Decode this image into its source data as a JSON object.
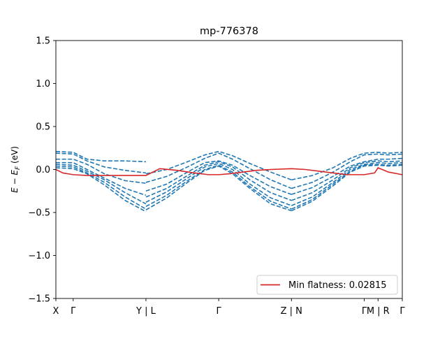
{
  "chart_data": {
    "type": "line",
    "title": "mp-776378",
    "ylabel": "E − E",
    "ylabel_sub": "F",
    "ylabel_unit": " (eV)",
    "ylim": [
      -1.5,
      1.5
    ],
    "y_ticks": [
      -1.5,
      -1.0,
      -0.5,
      0.0,
      0.5,
      1.0,
      1.5
    ],
    "y_tick_labels": [
      "−1.5",
      "−1.0",
      "−0.5",
      "0.0",
      "0.5",
      "1.0",
      "1.5"
    ],
    "xlim": [
      0,
      10.0
    ],
    "x_ticks": [
      {
        "x": 0.0,
        "label": "X"
      },
      {
        "x": 0.5,
        "label": "Γ"
      },
      {
        "x": 2.6,
        "label": "Y | L"
      },
      {
        "x": 4.7,
        "label": "Γ"
      },
      {
        "x": 6.8,
        "label": "Z | N"
      },
      {
        "x": 8.9,
        "label": "Γ"
      },
      {
        "x": 9.3,
        "label": "M | R"
      },
      {
        "x": 10.0,
        "label": "Γ"
      }
    ],
    "legend": {
      "placement": "lower-right",
      "entries": [
        "Min flatness: 0.02815"
      ]
    },
    "grid": false,
    "colors": {
      "bands": "#1f77b4",
      "flat_band": "#d62728"
    },
    "series": [
      {
        "style": "solid",
        "color": "#d62728",
        "x": [
          0.0,
          0.2,
          0.5,
          0.9,
          1.3,
          1.8,
          2.6,
          3.0,
          3.5,
          4.0,
          4.4,
          4.7,
          5.0,
          5.4,
          5.8,
          6.2,
          6.8,
          7.2,
          7.6,
          8.0,
          8.4,
          8.9,
          9.2,
          9.3,
          9.6,
          10.0
        ],
        "y": [
          0.0,
          -0.04,
          -0.06,
          -0.07,
          -0.07,
          -0.07,
          -0.07,
          0.01,
          -0.01,
          -0.04,
          -0.06,
          -0.06,
          -0.05,
          -0.03,
          -0.01,
          0.0,
          0.01,
          0.0,
          -0.02,
          -0.04,
          -0.06,
          -0.06,
          -0.04,
          0.02,
          -0.03,
          -0.06
        ]
      },
      {
        "style": "dashed",
        "color": "#1f77b4",
        "x": [
          0.0,
          0.5,
          0.9,
          1.4,
          2.0,
          2.6
        ],
        "y": [
          0.21,
          0.2,
          0.12,
          0.1,
          0.1,
          0.09
        ]
      },
      {
        "style": "dashed",
        "color": "#1f77b4",
        "x": [
          0.0,
          0.5,
          0.9,
          1.4,
          2.0,
          2.6
        ],
        "y": [
          0.19,
          0.18,
          0.1,
          0.03,
          -0.01,
          -0.04
        ]
      },
      {
        "style": "dashed",
        "color": "#1f77b4",
        "x": [
          0.0,
          0.5,
          0.9,
          1.4,
          2.0,
          2.6
        ],
        "y": [
          0.12,
          0.12,
          0.06,
          -0.05,
          -0.13,
          -0.16
        ]
      },
      {
        "style": "dashed",
        "color": "#1f77b4",
        "x": [
          0.0,
          0.5,
          0.9,
          1.4,
          2.0,
          2.6
        ],
        "y": [
          0.08,
          0.08,
          0.0,
          -0.1,
          -0.22,
          -0.3
        ]
      },
      {
        "style": "dashed",
        "color": "#1f77b4",
        "x": [
          0.0,
          0.5,
          0.9,
          1.4,
          2.0,
          2.6
        ],
        "y": [
          0.06,
          0.05,
          -0.02,
          -0.12,
          -0.27,
          -0.4
        ]
      },
      {
        "style": "dashed",
        "color": "#1f77b4",
        "x": [
          0.0,
          0.5,
          0.9,
          1.4,
          2.0,
          2.6
        ],
        "y": [
          0.04,
          0.03,
          -0.04,
          -0.15,
          -0.32,
          -0.46
        ]
      },
      {
        "style": "dashed",
        "color": "#1f77b4",
        "x": [
          0.0,
          0.5,
          0.9,
          1.4,
          2.0,
          2.6
        ],
        "y": [
          0.02,
          0.01,
          -0.05,
          -0.18,
          -0.36,
          -0.49
        ]
      },
      {
        "style": "dashed",
        "color": "#1f77b4",
        "x": [
          2.6,
          3.2,
          3.8,
          4.3,
          4.7,
          5.1,
          5.6,
          6.2,
          6.8
        ],
        "y": [
          -0.05,
          0.0,
          0.09,
          0.17,
          0.21,
          0.16,
          0.07,
          -0.03,
          -0.12
        ]
      },
      {
        "style": "dashed",
        "color": "#1f77b4",
        "x": [
          2.6,
          3.2,
          3.8,
          4.3,
          4.7,
          5.1,
          5.6,
          6.2,
          6.8
        ],
        "y": [
          -0.15,
          -0.08,
          0.03,
          0.13,
          0.19,
          0.12,
          0.01,
          -0.12,
          -0.22
        ]
      },
      {
        "style": "dashed",
        "color": "#1f77b4",
        "x": [
          2.6,
          3.2,
          3.8,
          4.3,
          4.7,
          5.1,
          5.6,
          6.2,
          6.8
        ],
        "y": [
          -0.25,
          -0.17,
          -0.03,
          0.08,
          0.1,
          0.05,
          -0.07,
          -0.2,
          -0.29
        ]
      },
      {
        "style": "dashed",
        "color": "#1f77b4",
        "x": [
          2.6,
          3.2,
          3.8,
          4.3,
          4.7,
          5.1,
          5.6,
          6.2,
          6.8
        ],
        "y": [
          -0.32,
          -0.22,
          -0.07,
          0.05,
          0.09,
          0.03,
          -0.12,
          -0.27,
          -0.36
        ]
      },
      {
        "style": "dashed",
        "color": "#1f77b4",
        "x": [
          2.6,
          3.2,
          3.8,
          4.3,
          4.7,
          5.1,
          5.6,
          6.2,
          6.8
        ],
        "y": [
          -0.38,
          -0.26,
          -0.1,
          0.03,
          0.07,
          0.0,
          -0.17,
          -0.33,
          -0.42
        ]
      },
      {
        "style": "dashed",
        "color": "#1f77b4",
        "x": [
          2.6,
          3.2,
          3.8,
          4.3,
          4.7,
          5.1,
          5.6,
          6.2,
          6.8
        ],
        "y": [
          -0.43,
          -0.3,
          -0.13,
          0.0,
          0.05,
          -0.03,
          -0.2,
          -0.37,
          -0.46
        ]
      },
      {
        "style": "dashed",
        "color": "#1f77b4",
        "x": [
          2.6,
          3.2,
          3.8,
          4.3,
          4.7,
          5.1,
          5.6,
          6.2,
          6.8
        ],
        "y": [
          -0.47,
          -0.33,
          -0.15,
          -0.01,
          0.04,
          -0.05,
          -0.22,
          -0.4,
          -0.48
        ]
      },
      {
        "style": "dashed",
        "color": "#1f77b4",
        "x": [
          6.8,
          7.4,
          8.0,
          8.5,
          8.9,
          9.3,
          9.6,
          10.0
        ],
        "y": [
          -0.12,
          -0.07,
          0.02,
          0.13,
          0.19,
          0.2,
          0.19,
          0.2
        ]
      },
      {
        "style": "dashed",
        "color": "#1f77b4",
        "x": [
          6.8,
          7.4,
          8.0,
          8.5,
          8.9,
          9.3,
          9.6,
          10.0
        ],
        "y": [
          -0.22,
          -0.15,
          -0.03,
          0.09,
          0.17,
          0.18,
          0.17,
          0.18
        ]
      },
      {
        "style": "dashed",
        "color": "#1f77b4",
        "x": [
          6.8,
          7.4,
          8.0,
          8.5,
          8.9,
          9.3,
          9.6,
          10.0
        ],
        "y": [
          -0.29,
          -0.21,
          -0.08,
          0.04,
          0.09,
          0.12,
          0.12,
          0.13
        ]
      },
      {
        "style": "dashed",
        "color": "#1f77b4",
        "x": [
          6.8,
          7.4,
          8.0,
          8.5,
          8.9,
          9.3,
          9.6,
          10.0
        ],
        "y": [
          -0.36,
          -0.27,
          -0.12,
          0.02,
          0.08,
          0.1,
          0.09,
          0.1
        ]
      },
      {
        "style": "dashed",
        "color": "#1f77b4",
        "x": [
          6.8,
          7.4,
          8.0,
          8.5,
          8.9,
          9.3,
          9.6,
          10.0
        ],
        "y": [
          -0.42,
          -0.32,
          -0.15,
          0.0,
          0.06,
          0.08,
          0.07,
          0.08
        ]
      },
      {
        "style": "dashed",
        "color": "#1f77b4",
        "x": [
          6.8,
          7.4,
          8.0,
          8.5,
          8.9,
          9.3,
          9.6,
          10.0
        ],
        "y": [
          -0.46,
          -0.35,
          -0.17,
          -0.02,
          0.05,
          0.06,
          0.05,
          0.06
        ]
      },
      {
        "style": "dashed",
        "color": "#1f77b4",
        "x": [
          6.8,
          7.4,
          8.0,
          8.5,
          8.9,
          9.3,
          9.6,
          10.0
        ],
        "y": [
          -0.48,
          -0.37,
          -0.19,
          -0.03,
          0.04,
          0.05,
          0.04,
          0.05
        ]
      }
    ]
  }
}
